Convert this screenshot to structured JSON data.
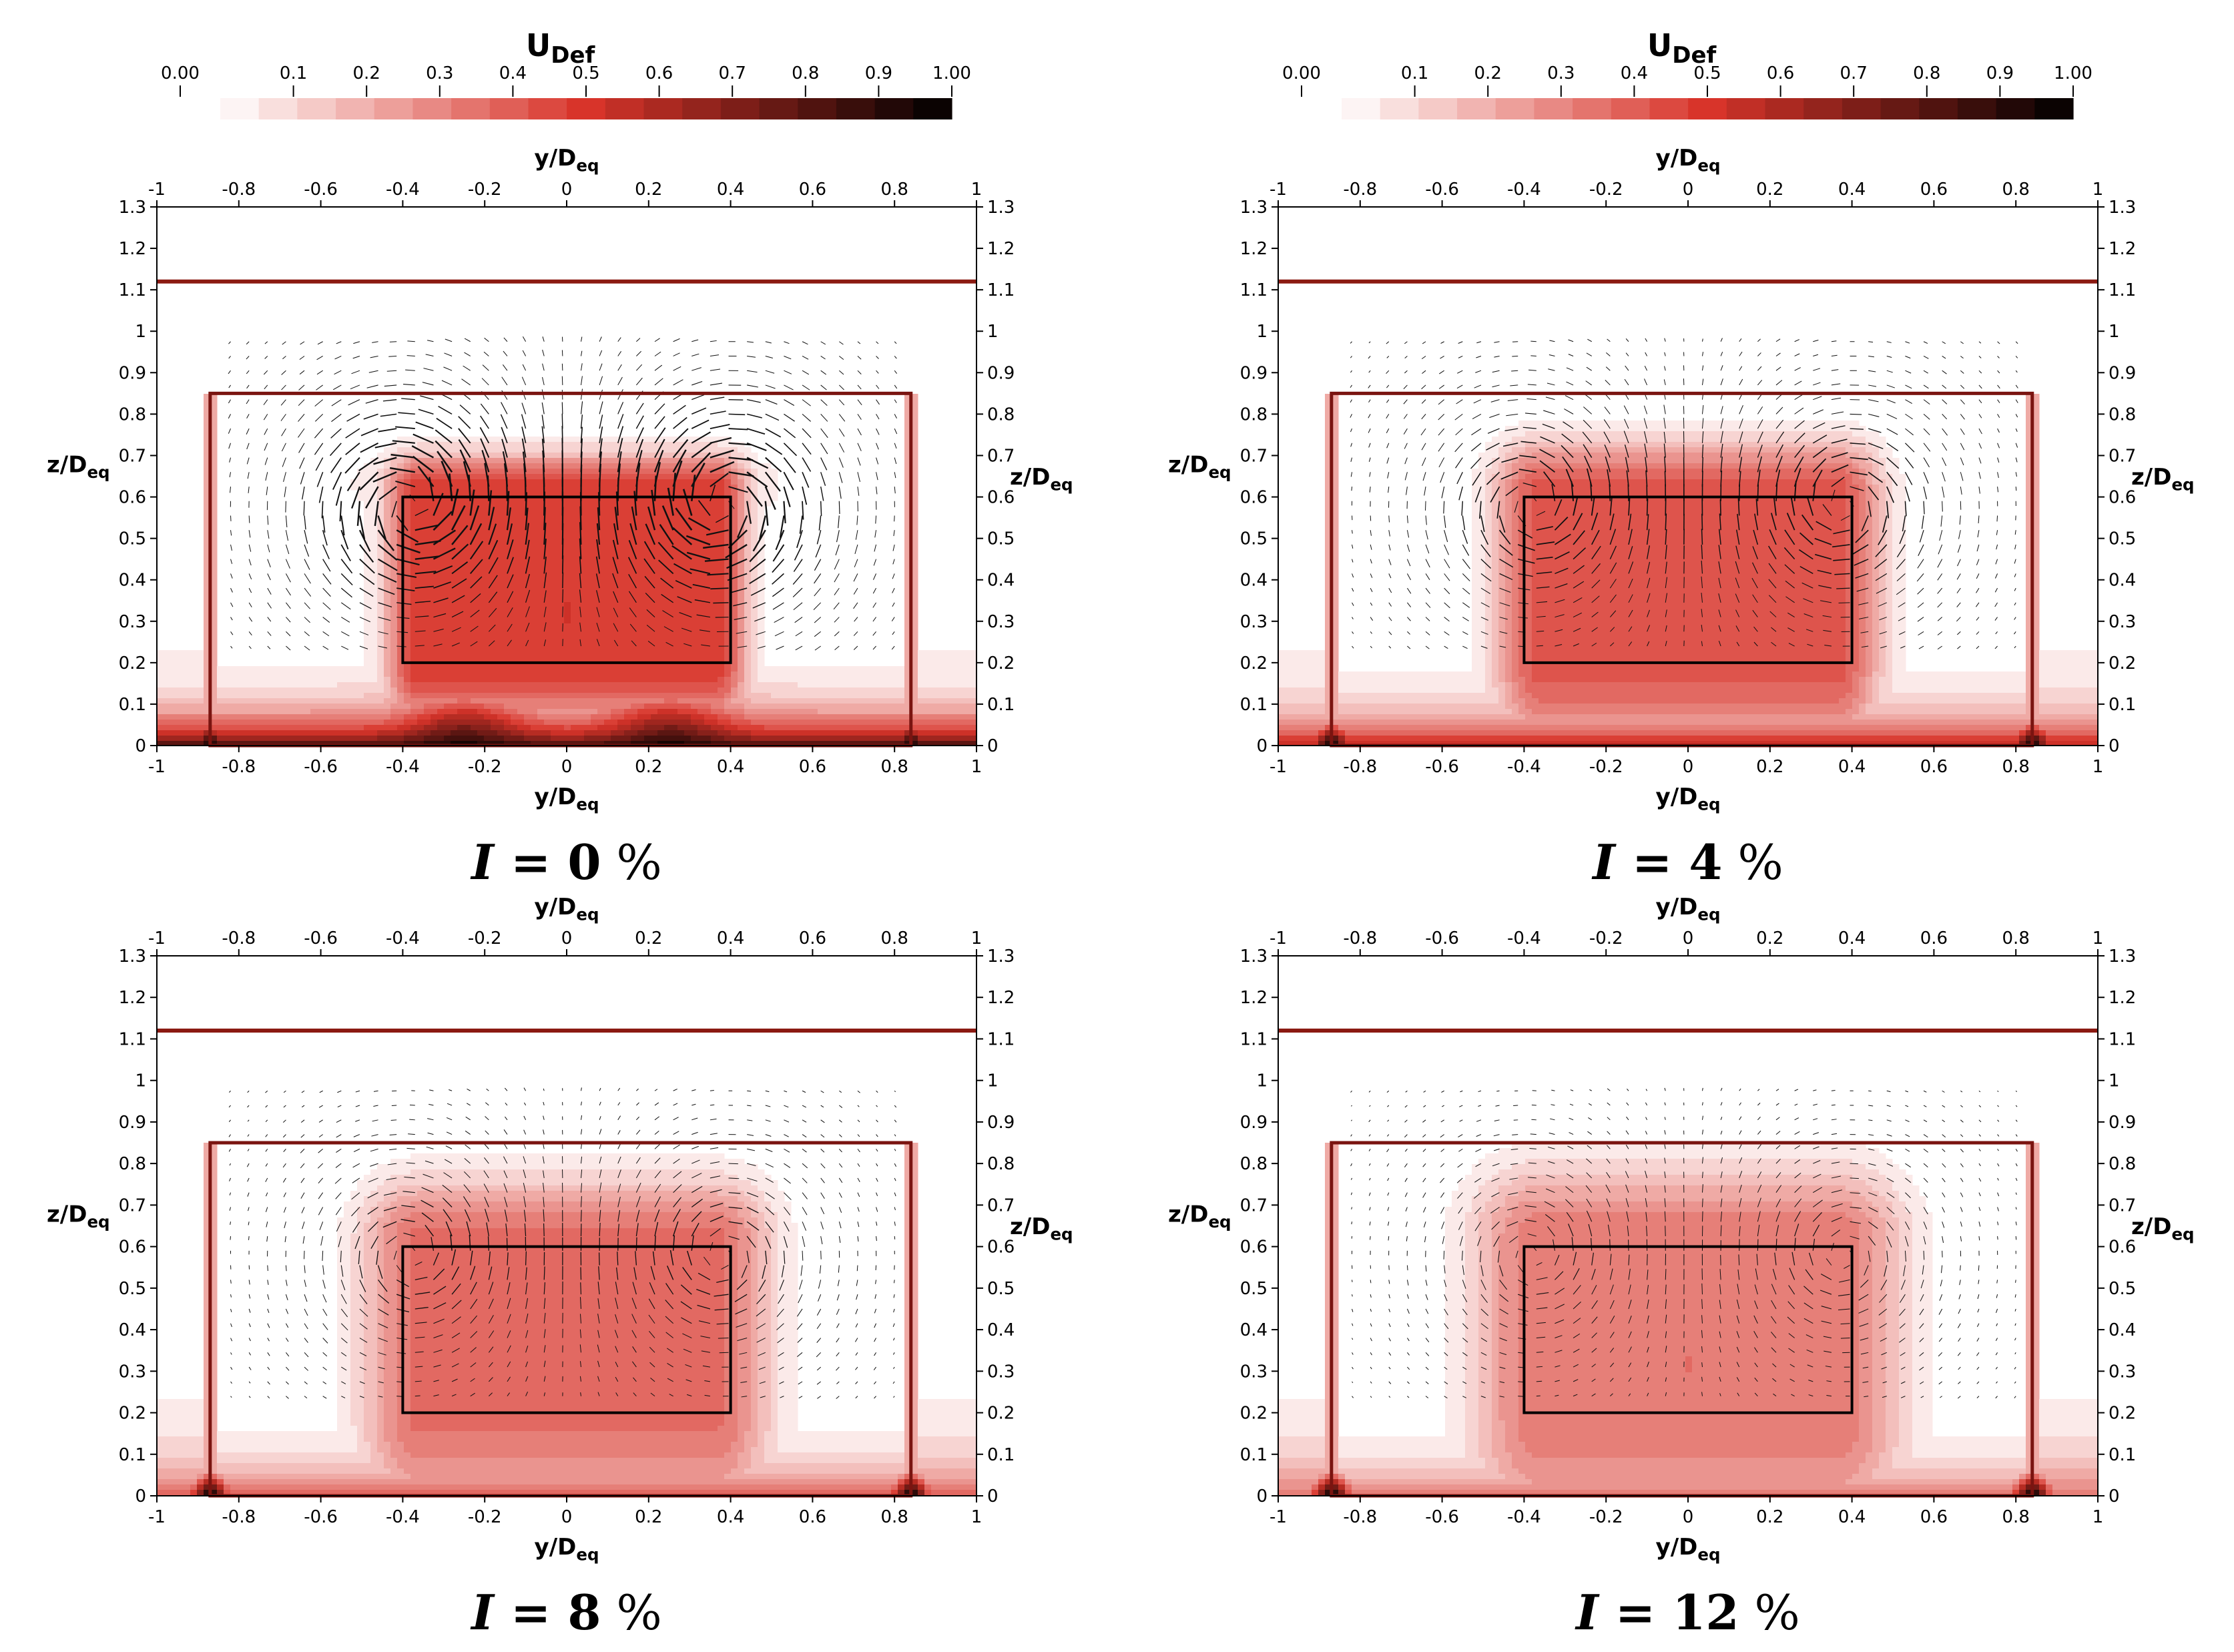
{
  "colorbar": {
    "title_main": "U",
    "title_sub": "Def",
    "tick_labels": [
      "0.00",
      "0.1",
      "0.2",
      "0.3",
      "0.4",
      "0.5",
      "0.6",
      "0.7",
      "0.8",
      "0.9",
      "1.00"
    ],
    "range": [
      0,
      1
    ],
    "levels": 19,
    "color_low": "#ffffff",
    "color_mid": "#d8342a",
    "color_high": "#000000"
  },
  "chart_data": [
    {
      "type": "heatmap",
      "title_symbol": "I",
      "title_value": "0",
      "title_unit": "%",
      "xlabel_main": "y/D",
      "xlabel_sub": "eq",
      "ylabel_main": "z/D",
      "ylabel_sub": "eq",
      "xlim": [
        -1,
        1
      ],
      "ylim": [
        0,
        1.3
      ],
      "x_ticks": [
        "-1",
        "-0.8",
        "-0.6",
        "-0.4",
        "-0.2",
        "0",
        "0.2",
        "0.4",
        "0.6",
        "0.8",
        "1"
      ],
      "y_ticks": [
        "0",
        "0.1",
        "0.2",
        "0.3",
        "0.4",
        "0.5",
        "0.6",
        "0.7",
        "0.8",
        "0.9",
        "1",
        "1.1",
        "1.2",
        "1.3"
      ],
      "duct_rect": {
        "y_min": -0.87,
        "y_max": 0.84,
        "z_min": 0,
        "z_max": 0.85
      },
      "body_rect": {
        "y_min": -0.4,
        "y_max": 0.4,
        "z_min": 0.2,
        "z_max": 0.6
      },
      "top_line_z": 1.12,
      "wake_intensity": 0.52,
      "floor_intensity": 0.85,
      "vector_scale": 1.0,
      "turbulence_percent": 0
    },
    {
      "type": "heatmap",
      "title_symbol": "I",
      "title_value": "4",
      "title_unit": "%",
      "xlabel_main": "y/D",
      "xlabel_sub": "eq",
      "ylabel_main": "z/D",
      "ylabel_sub": "eq",
      "xlim": [
        -1,
        1
      ],
      "ylim": [
        0,
        1.3
      ],
      "x_ticks": [
        "-1",
        "-0.8",
        "-0.6",
        "-0.4",
        "-0.2",
        "0",
        "0.2",
        "0.4",
        "0.6",
        "0.8",
        "1"
      ],
      "y_ticks": [
        "0",
        "0.1",
        "0.2",
        "0.3",
        "0.4",
        "0.5",
        "0.6",
        "0.7",
        "0.8",
        "0.9",
        "1",
        "1.1",
        "1.2",
        "1.3"
      ],
      "duct_rect": {
        "y_min": -0.87,
        "y_max": 0.84,
        "z_min": 0,
        "z_max": 0.85
      },
      "body_rect": {
        "y_min": -0.4,
        "y_max": 0.4,
        "z_min": 0.2,
        "z_max": 0.6
      },
      "top_line_z": 1.12,
      "wake_intensity": 0.45,
      "floor_intensity": 0.62,
      "vector_scale": 0.7,
      "turbulence_percent": 4
    },
    {
      "type": "heatmap",
      "title_symbol": "I",
      "title_value": "8",
      "title_unit": "%",
      "xlabel_main": "y/D",
      "xlabel_sub": "eq",
      "ylabel_main": "z/D",
      "ylabel_sub": "eq",
      "xlim": [
        -1,
        1
      ],
      "ylim": [
        0,
        1.3
      ],
      "x_ticks": [
        "-1",
        "-0.8",
        "-0.6",
        "-0.4",
        "-0.2",
        "0",
        "0.2",
        "0.4",
        "0.6",
        "0.8",
        "1"
      ],
      "y_ticks": [
        "0",
        "0.1",
        "0.2",
        "0.3",
        "0.4",
        "0.5",
        "0.6",
        "0.7",
        "0.8",
        "0.9",
        "1",
        "1.1",
        "1.2",
        "1.3"
      ],
      "duct_rect": {
        "y_min": -0.87,
        "y_max": 0.84,
        "z_min": 0,
        "z_max": 0.85
      },
      "body_rect": {
        "y_min": -0.4,
        "y_max": 0.4,
        "z_min": 0.2,
        "z_max": 0.6
      },
      "top_line_z": 1.12,
      "wake_intensity": 0.38,
      "floor_intensity": 0.45,
      "vector_scale": 0.55,
      "turbulence_percent": 8
    },
    {
      "type": "heatmap",
      "title_symbol": "I",
      "title_value": "12",
      "title_unit": "%",
      "xlabel_main": "y/D",
      "xlabel_sub": "eq",
      "ylabel_main": "z/D",
      "ylabel_sub": "eq",
      "xlim": [
        -1,
        1
      ],
      "ylim": [
        0,
        1.3
      ],
      "x_ticks": [
        "-1",
        "-0.8",
        "-0.6",
        "-0.4",
        "-0.2",
        "0",
        "0.2",
        "0.4",
        "0.6",
        "0.8",
        "1"
      ],
      "y_ticks": [
        "0",
        "0.1",
        "0.2",
        "0.3",
        "0.4",
        "0.5",
        "0.6",
        "0.7",
        "0.8",
        "0.9",
        "1",
        "1.1",
        "1.2",
        "1.3"
      ],
      "duct_rect": {
        "y_min": -0.87,
        "y_max": 0.84,
        "z_min": 0,
        "z_max": 0.85
      },
      "body_rect": {
        "y_min": -0.4,
        "y_max": 0.4,
        "z_min": 0.2,
        "z_max": 0.6
      },
      "top_line_z": 1.12,
      "wake_intensity": 0.36,
      "floor_intensity": 0.38,
      "vector_scale": 0.45,
      "turbulence_percent": 12
    }
  ]
}
